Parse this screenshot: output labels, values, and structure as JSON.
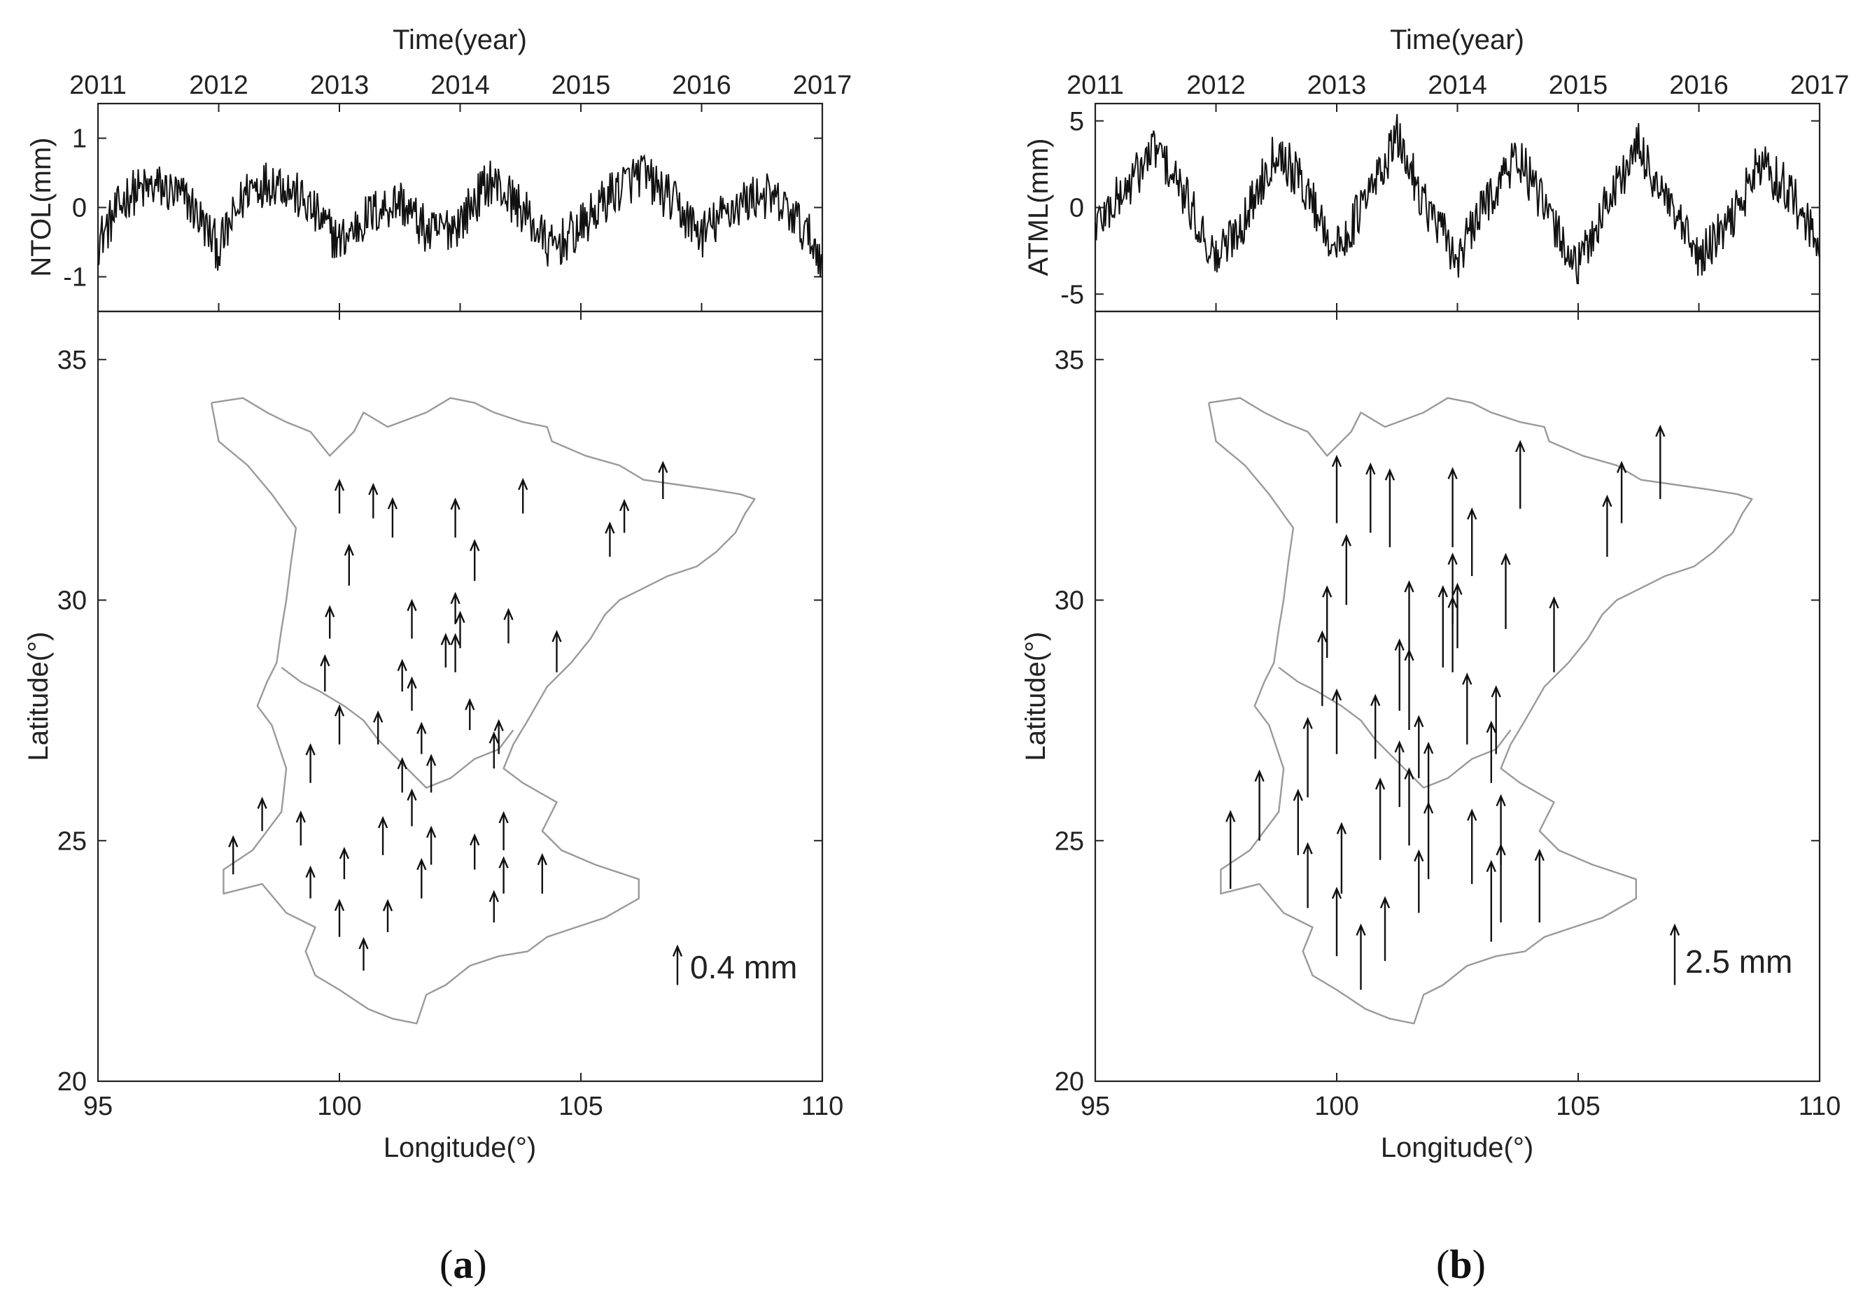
{
  "chart_data": [
    {
      "panel": "a",
      "panel_label": {
        "open": "(",
        "letter": "a",
        "close": ")"
      },
      "top": {
        "type": "line",
        "title": "Time(year)",
        "ylabel": "NTOL(mm)",
        "xlim": [
          2011,
          2017
        ],
        "ylim": [
          -1.5,
          1.5
        ],
        "xticks": [
          2011,
          2012,
          2013,
          2014,
          2015,
          2016,
          2017
        ],
        "yticks": [
          1,
          0,
          -1
        ],
        "series": [
          {
            "name": "NTOL",
            "x": [
              2011.0,
              2011.25,
              2011.5,
              2011.75,
              2012.0,
              2012.25,
              2012.5,
              2012.75,
              2013.0,
              2013.25,
              2013.5,
              2013.75,
              2014.0,
              2014.25,
              2014.5,
              2014.75,
              2015.0,
              2015.25,
              2015.5,
              2015.75,
              2016.0,
              2016.25,
              2016.5,
              2016.75,
              2017.0
            ],
            "y": [
              -0.5,
              0.2,
              0.3,
              0.1,
              -0.6,
              0.3,
              0.4,
              0.0,
              -0.5,
              -0.1,
              0.1,
              -0.4,
              -0.2,
              0.4,
              0.0,
              -0.6,
              -0.3,
              0.2,
              0.5,
              0.1,
              -0.4,
              0.0,
              0.2,
              -0.1,
              -0.7
            ],
            "noise_amplitude": 0.35
          }
        ]
      },
      "map": {
        "type": "quiver",
        "xlabel": "Longitude(°)",
        "ylabel": "Latitude(°)",
        "xlim": [
          95,
          110
        ],
        "ylim": [
          20,
          36
        ],
        "xticks": [
          95,
          100,
          105,
          110
        ],
        "yticks": [
          35,
          30,
          25,
          20
        ],
        "scale": {
          "label": "0.4 mm",
          "length_mm": 0.4,
          "lon": 107.0,
          "lat": 22.0
        },
        "length_mm": 0.4,
        "stations": [
          [
            100.0,
            31.8
          ],
          [
            100.7,
            31.7
          ],
          [
            101.1,
            31.3
          ],
          [
            102.4,
            31.3
          ],
          [
            103.8,
            31.8
          ],
          [
            106.7,
            32.1
          ],
          [
            105.9,
            31.4
          ],
          [
            105.6,
            30.9
          ],
          [
            100.2,
            30.3
          ],
          [
            102.8,
            30.4
          ],
          [
            99.8,
            29.2
          ],
          [
            101.5,
            29.2
          ],
          [
            102.4,
            29.5
          ],
          [
            102.5,
            29.0
          ],
          [
            103.5,
            29.1
          ],
          [
            102.2,
            28.6
          ],
          [
            102.4,
            28.5
          ],
          [
            104.5,
            28.5
          ],
          [
            99.7,
            28.1
          ],
          [
            101.3,
            28.1
          ],
          [
            101.5,
            27.7
          ],
          [
            102.7,
            27.3
          ],
          [
            100.0,
            27.0
          ],
          [
            100.8,
            27.0
          ],
          [
            101.7,
            26.8
          ],
          [
            103.3,
            26.8
          ],
          [
            103.2,
            26.5
          ],
          [
            99.4,
            26.2
          ],
          [
            101.3,
            26.0
          ],
          [
            101.9,
            26.0
          ],
          [
            101.5,
            25.3
          ],
          [
            98.4,
            25.2
          ],
          [
            99.2,
            24.9
          ],
          [
            100.9,
            24.7
          ],
          [
            99.4,
            23.8
          ],
          [
            100.1,
            24.2
          ],
          [
            101.9,
            24.5
          ],
          [
            102.8,
            24.4
          ],
          [
            103.4,
            24.8
          ],
          [
            101.7,
            23.8
          ],
          [
            103.4,
            23.9
          ],
          [
            104.2,
            23.9
          ],
          [
            97.8,
            24.3
          ],
          [
            100.0,
            23.0
          ],
          [
            101.0,
            23.1
          ],
          [
            103.2,
            23.3
          ],
          [
            100.5,
            22.3
          ]
        ]
      }
    },
    {
      "panel": "b",
      "panel_label": {
        "open": "(",
        "letter": "b",
        "close": ")"
      },
      "top": {
        "type": "line",
        "title": "Time(year)",
        "ylabel": "ATML(mm)",
        "xlim": [
          2011,
          2017
        ],
        "ylim": [
          -6,
          6
        ],
        "xticks": [
          2011,
          2012,
          2013,
          2014,
          2015,
          2016,
          2017
        ],
        "yticks": [
          5,
          0,
          -5
        ],
        "series": [
          {
            "name": "ATML",
            "x": [
              2011.0,
              2011.25,
              2011.5,
              2011.75,
              2012.0,
              2012.25,
              2012.5,
              2012.75,
              2013.0,
              2013.25,
              2013.5,
              2013.75,
              2014.0,
              2014.25,
              2014.5,
              2014.75,
              2015.0,
              2015.25,
              2015.5,
              2015.75,
              2016.0,
              2016.25,
              2016.5,
              2016.75,
              2017.0
            ],
            "y": [
              -1.0,
              1.0,
              3.5,
              0.5,
              -3.0,
              -0.5,
              3.5,
              1.0,
              -2.5,
              0.5,
              4.0,
              0.0,
              -3.0,
              0.5,
              3.0,
              -0.5,
              -3.5,
              0.5,
              3.5,
              0.0,
              -3.0,
              -1.0,
              2.5,
              1.0,
              -2.5
            ],
            "noise_amplitude": 1.4
          }
        ]
      },
      "map": {
        "type": "quiver",
        "xlabel": "Longitude(°)",
        "ylabel": "Latitude(°)",
        "xlim": [
          95,
          110
        ],
        "ylim": [
          20,
          36
        ],
        "xticks": [
          95,
          100,
          105,
          110
        ],
        "yticks": [
          35,
          30,
          25,
          20
        ],
        "scale": {
          "label": "2.5 mm",
          "length_mm": 2.5,
          "lon": 107.0,
          "lat": 22.0
        },
        "length_mm": 2.5,
        "stations": [
          [
            100.0,
            31.6
          ],
          [
            100.7,
            31.4
          ],
          [
            101.1,
            31.1
          ],
          [
            102.4,
            31.1
          ],
          [
            103.8,
            31.9
          ],
          [
            106.7,
            32.1
          ],
          [
            105.9,
            31.6
          ],
          [
            105.6,
            30.9
          ],
          [
            100.2,
            29.9
          ],
          [
            102.8,
            30.5
          ],
          [
            99.8,
            28.8
          ],
          [
            101.5,
            28.8
          ],
          [
            102.4,
            29.5
          ],
          [
            102.5,
            29.0
          ],
          [
            103.5,
            29.4
          ],
          [
            102.2,
            28.6
          ],
          [
            102.4,
            28.5
          ],
          [
            104.5,
            28.5
          ],
          [
            99.7,
            27.8
          ],
          [
            101.3,
            27.7
          ],
          [
            101.5,
            27.3
          ],
          [
            102.7,
            27.0
          ],
          [
            100.0,
            26.8
          ],
          [
            100.8,
            26.7
          ],
          [
            101.7,
            26.3
          ],
          [
            103.3,
            26.8
          ],
          [
            103.2,
            26.2
          ],
          [
            99.4,
            25.9
          ],
          [
            101.3,
            25.7
          ],
          [
            101.9,
            25.7
          ],
          [
            101.5,
            24.9
          ],
          [
            98.4,
            25.0
          ],
          [
            99.2,
            24.7
          ],
          [
            100.9,
            24.6
          ],
          [
            99.4,
            23.6
          ],
          [
            100.1,
            23.9
          ],
          [
            101.9,
            24.2
          ],
          [
            102.8,
            24.1
          ],
          [
            103.4,
            24.5
          ],
          [
            101.7,
            23.5
          ],
          [
            103.4,
            23.3
          ],
          [
            104.2,
            23.3
          ],
          [
            97.8,
            24.0
          ],
          [
            100.0,
            22.6
          ],
          [
            101.0,
            22.5
          ],
          [
            103.2,
            22.9
          ],
          [
            100.5,
            21.9
          ]
        ]
      }
    }
  ]
}
